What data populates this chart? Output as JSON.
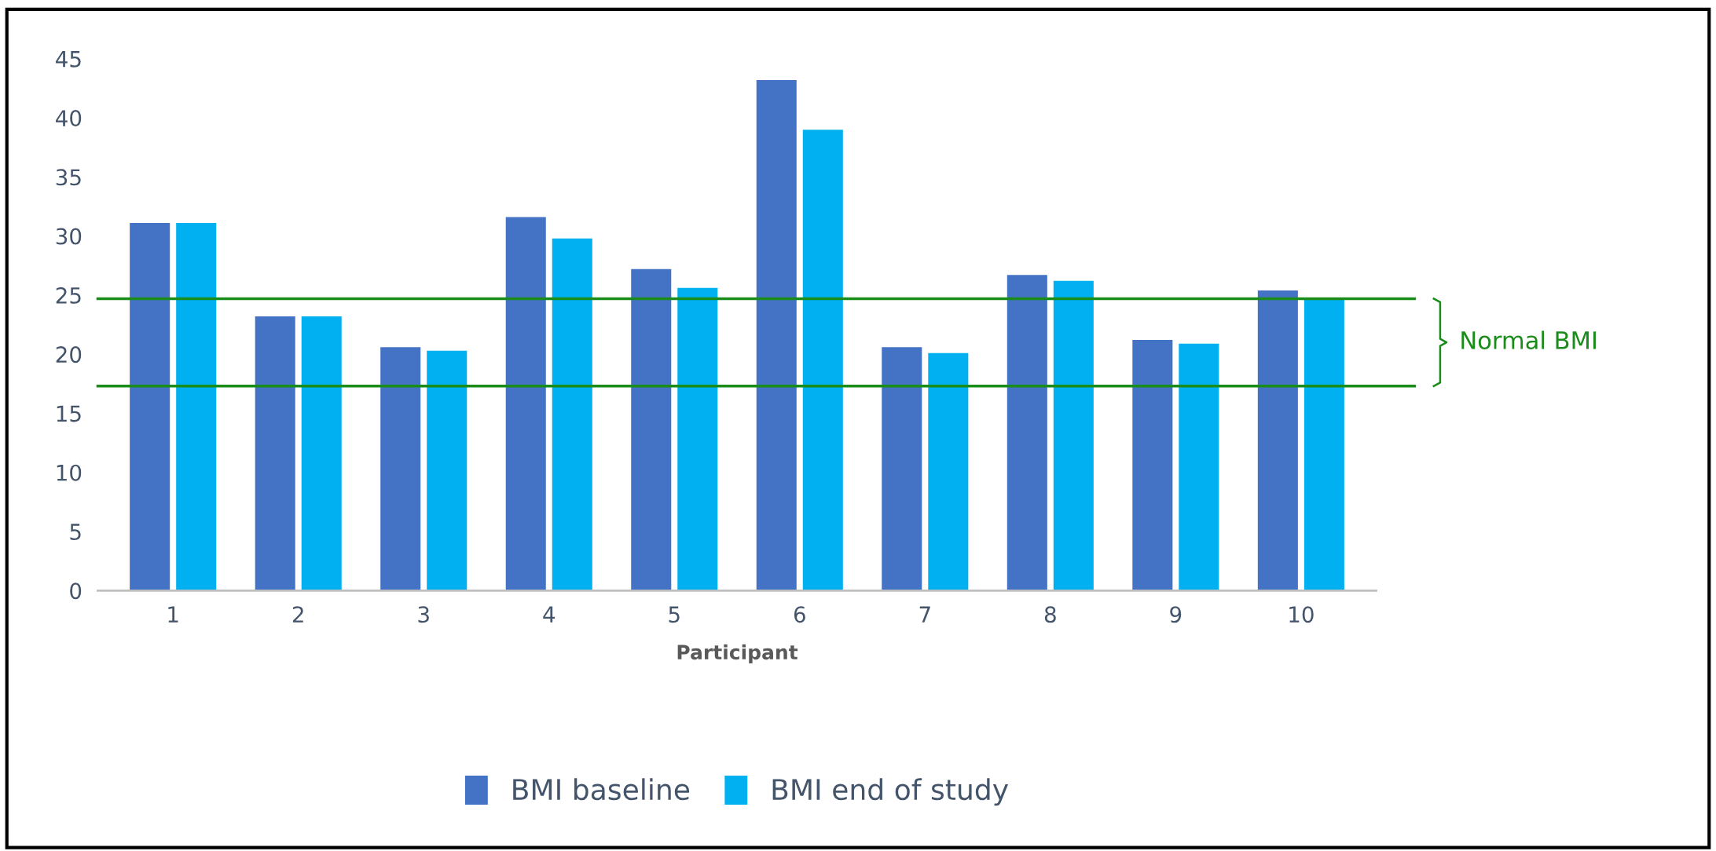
{
  "chart_data": {
    "type": "bar",
    "xlabel": "Participant",
    "categories": [
      "1",
      "2",
      "3",
      "4",
      "5",
      "6",
      "7",
      "8",
      "9",
      "10"
    ],
    "series": [
      {
        "name": "BMI baseline",
        "color": "#4472c4",
        "values": [
          31.1,
          23.2,
          20.6,
          31.6,
          27.2,
          43.2,
          20.6,
          26.7,
          21.2,
          25.4
        ]
      },
      {
        "name": "BMI end of study",
        "color": "#00b0f0",
        "values": [
          31.1,
          23.2,
          20.3,
          29.8,
          25.6,
          39.0,
          20.1,
          26.2,
          20.9,
          24.7
        ]
      }
    ],
    "ylim": [
      0,
      45
    ],
    "yticks": [
      0,
      5,
      10,
      15,
      20,
      25,
      30,
      35,
      40,
      45
    ],
    "ref_lines": [
      {
        "axis": "y",
        "value": 24.7,
        "color": "#1a8c1a"
      },
      {
        "axis": "y",
        "value": 17.3,
        "color": "#1a8c1a"
      }
    ],
    "annotations": [
      "Normal BMI"
    ],
    "grid": false,
    "legend": "bottom"
  }
}
